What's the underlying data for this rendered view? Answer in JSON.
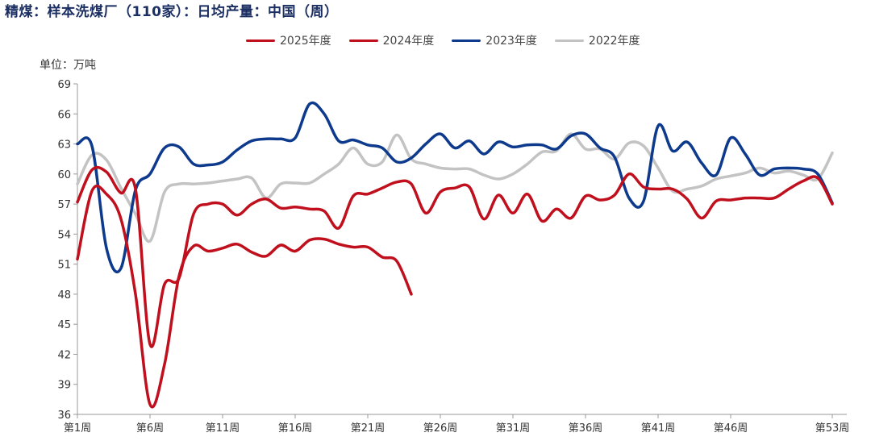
{
  "title": "精煤：样本洗煤厂（110家）：日均产量：中国（周）",
  "unit_label": "单位：万吨",
  "chart_data": {
    "type": "line",
    "title": "精煤：样本洗煤厂（110家）：日均产量：中国（周）",
    "ylabel": "单位：万吨",
    "xlabel": "",
    "ylim": [
      36,
      69
    ],
    "yticks": [
      36,
      39,
      42,
      45,
      48,
      51,
      54,
      57,
      60,
      63,
      66,
      69
    ],
    "xlim": [
      1,
      53
    ],
    "xticks": [
      {
        "week": 1,
        "label": "第1周"
      },
      {
        "week": 6,
        "label": "第6周"
      },
      {
        "week": 11,
        "label": "第11周"
      },
      {
        "week": 16,
        "label": "第16周"
      },
      {
        "week": 21,
        "label": "第21周"
      },
      {
        "week": 26,
        "label": "第26周"
      },
      {
        "week": 31,
        "label": "第31周"
      },
      {
        "week": 36,
        "label": "第36周"
      },
      {
        "week": 41,
        "label": "第41周"
      },
      {
        "week": 46,
        "label": "第46周"
      },
      {
        "week": 53,
        "label": "第53周"
      }
    ],
    "legend_position": "top-center",
    "series": [
      {
        "name": "2025年度",
        "color": "#c00f1d",
        "x": [
          1,
          2,
          3,
          4,
          5,
          6,
          7,
          8,
          9,
          10,
          11,
          12,
          13,
          14,
          15,
          16,
          17,
          18,
          19,
          20,
          21,
          22,
          23,
          24
        ],
        "values": [
          51.5,
          58.3,
          58.0,
          55.5,
          48.0,
          37.0,
          41.0,
          49.8,
          52.8,
          52.3,
          52.6,
          53.0,
          52.2,
          51.8,
          52.9,
          52.3,
          53.4,
          53.5,
          53.0,
          52.7,
          52.7,
          51.7,
          51.3,
          48.0
        ]
      },
      {
        "name": "2024年度",
        "color": "#c00f1d",
        "x": [
          1,
          2,
          3,
          4,
          5,
          6,
          7,
          8,
          9,
          10,
          11,
          12,
          13,
          14,
          15,
          16,
          17,
          18,
          19,
          20,
          21,
          22,
          23,
          24,
          25,
          26,
          27,
          28,
          29,
          30,
          31,
          32,
          33,
          34,
          35,
          36,
          37,
          38,
          39,
          40,
          41,
          42,
          43,
          44,
          45,
          46,
          47,
          48,
          49,
          50,
          51,
          52,
          53
        ],
        "values": [
          57.2,
          60.4,
          60.2,
          58.1,
          58.5,
          43.0,
          49.0,
          49.6,
          56.0,
          57.0,
          57.0,
          55.9,
          57.0,
          57.5,
          56.6,
          56.7,
          56.5,
          56.3,
          54.6,
          57.8,
          58.0,
          58.6,
          59.2,
          59.0,
          56.1,
          58.2,
          58.6,
          58.7,
          55.5,
          57.9,
          56.1,
          58.0,
          55.3,
          56.5,
          55.6,
          57.8,
          57.4,
          57.9,
          60.0,
          58.7,
          58.5,
          58.5,
          57.5,
          55.6,
          57.3,
          57.4,
          57.6,
          57.6,
          57.6,
          58.5,
          59.3,
          59.6,
          57.0
        ]
      },
      {
        "name": "2023年度",
        "color": "#0d3a8c",
        "x": [
          1,
          2,
          3,
          4,
          5,
          6,
          7,
          8,
          9,
          10,
          11,
          12,
          13,
          14,
          15,
          16,
          17,
          18,
          19,
          20,
          21,
          22,
          23,
          24,
          25,
          26,
          27,
          28,
          29,
          30,
          31,
          32,
          33,
          34,
          35,
          36,
          37,
          38,
          39,
          40,
          41,
          42,
          43,
          44,
          45,
          46,
          47,
          48,
          49,
          50,
          51,
          52,
          53
        ],
        "values": [
          63.0,
          62.8,
          52.6,
          50.6,
          58.4,
          60.0,
          62.6,
          62.7,
          61.0,
          60.9,
          61.2,
          62.4,
          63.3,
          63.5,
          63.5,
          63.6,
          67.0,
          66.0,
          63.3,
          63.4,
          62.9,
          62.6,
          61.2,
          61.6,
          63.0,
          64.0,
          62.6,
          63.3,
          62.0,
          63.2,
          62.7,
          62.9,
          62.9,
          62.5,
          63.8,
          64.0,
          62.6,
          61.7,
          57.6,
          57.3,
          64.8,
          62.3,
          63.2,
          61.1,
          59.9,
          63.6,
          62.0,
          59.9,
          60.5,
          60.6,
          60.5,
          60.0,
          57.1
        ]
      },
      {
        "name": "2022年度",
        "color": "#c3c3c3",
        "x": [
          1,
          2,
          3,
          4,
          5,
          6,
          7,
          8,
          9,
          10,
          11,
          12,
          13,
          14,
          15,
          16,
          17,
          18,
          19,
          20,
          21,
          22,
          23,
          24,
          25,
          26,
          27,
          28,
          29,
          30,
          31,
          32,
          33,
          34,
          35,
          36,
          37,
          38,
          39,
          40,
          41,
          42,
          43,
          44,
          45,
          46,
          47,
          48,
          49,
          50,
          51,
          52,
          53
        ],
        "values": [
          59.0,
          61.9,
          61.4,
          58.6,
          56.0,
          53.3,
          58.2,
          59.0,
          59.0,
          59.1,
          59.3,
          59.5,
          59.6,
          57.6,
          59.0,
          59.1,
          59.1,
          60.0,
          61.0,
          62.6,
          61.0,
          61.2,
          63.9,
          61.5,
          61.0,
          60.6,
          60.5,
          60.5,
          59.9,
          59.5,
          60.0,
          61.0,
          62.2,
          62.3,
          64.0,
          62.5,
          62.5,
          61.5,
          63.1,
          62.8,
          60.6,
          58.3,
          58.5,
          58.8,
          59.5,
          59.8,
          60.1,
          60.6,
          60.1,
          60.3,
          59.9,
          59.5,
          62.1
        ]
      }
    ]
  }
}
